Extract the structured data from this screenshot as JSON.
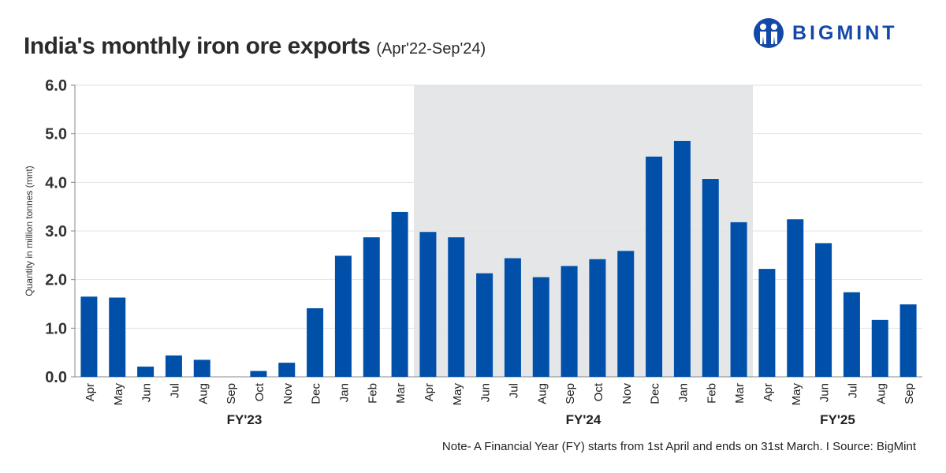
{
  "header": {
    "title": "India's monthly iron ore exports",
    "subtitle": "(Apr'22-Sep'24)"
  },
  "logo": {
    "text": "BIGMINT",
    "color": "#1348a8"
  },
  "note": "Note- A Financial Year (FY) starts from 1st April and ends on 31st March.  I  Source: BigMint",
  "chart_data": {
    "type": "bar",
    "title": "India's monthly iron ore exports",
    "subtitle": "(Apr'22-Sep'24)",
    "ylabel": "Quantity in million tonnes (mnt)",
    "xlabel": "",
    "ylim": [
      0,
      6
    ],
    "yticks": [
      "0.0",
      "1.0",
      "2.0",
      "3.0",
      "4.0",
      "5.0",
      "6.0"
    ],
    "grid": true,
    "bar_color": "#0050aa",
    "highlight_color": "#e5e6e8",
    "categories": [
      "Apr",
      "May",
      "Jun",
      "Jul",
      "Aug",
      "Sep",
      "Oct",
      "Nov",
      "Dec",
      "Jan",
      "Feb",
      "Mar",
      "Apr",
      "May",
      "Jun",
      "Jul",
      "Aug",
      "Sep",
      "Oct",
      "Nov",
      "Dec",
      "Jan",
      "Feb",
      "Mar",
      "Apr",
      "May",
      "Jun",
      "Jul",
      "Aug",
      "Sep"
    ],
    "values": [
      1.65,
      1.63,
      0.21,
      0.44,
      0.35,
      0.0,
      0.12,
      0.29,
      1.41,
      2.49,
      2.87,
      3.39,
      2.98,
      2.87,
      2.13,
      2.44,
      2.05,
      2.28,
      2.42,
      2.59,
      4.53,
      4.85,
      4.07,
      3.18,
      2.22,
      3.24,
      2.75,
      1.74,
      1.17,
      1.49
    ],
    "groups": [
      {
        "label": "FY'23",
        "start": 0,
        "end": 11
      },
      {
        "label": "FY'24",
        "start": 12,
        "end": 23,
        "highlighted": true
      },
      {
        "label": "FY'25",
        "start": 24,
        "end": 29
      }
    ]
  }
}
